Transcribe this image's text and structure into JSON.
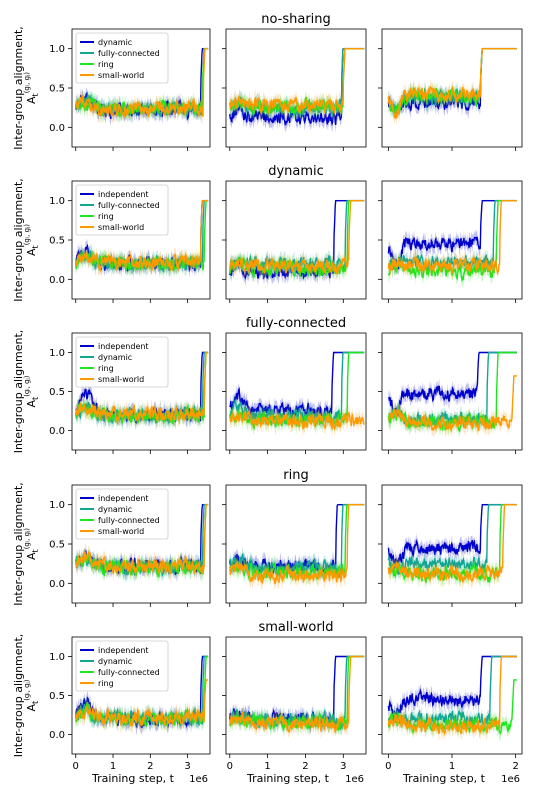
{
  "figure": {
    "ylabel_main": "Inter-group alignment,",
    "ylabel_symbol": "A",
    "ylabel_sub": "t",
    "ylabel_sup": "(gᵢ, gⱼ)",
    "xlabel": "Training step, t",
    "x_multiplier": "1e6"
  },
  "colors": {
    "dynamic": "#0000cc",
    "independent": "#0000cc",
    "fully-connected": "#12a596",
    "ring": "#1ee61e",
    "small-world": "#ff9900"
  },
  "chart_data": [
    {
      "type": "line",
      "title": "no-sharing",
      "legend": [
        "dynamic",
        "fully-connected",
        "ring",
        "small-world"
      ],
      "legend_colors": [
        "#0000cc",
        "#12a596",
        "#1ee61e",
        "#ff9900"
      ],
      "ylim": [
        -0.25,
        1.25
      ],
      "yticks": [
        "0.0",
        "0.5",
        "1.0"
      ],
      "panels": [
        {
          "xlim": [
            -0.1,
            3.6
          ],
          "xticks": [
            0,
            1,
            2,
            3
          ],
          "series": [
            {
              "color": "#0000cc",
              "switch": 3.35,
              "base": 0.22,
              "early": 0.4,
              "end": 1.0
            },
            {
              "color": "#12a596",
              "switch": 3.4,
              "base": 0.22,
              "early": 0.35,
              "end": 1.0
            },
            {
              "color": "#1ee61e",
              "switch": 3.4,
              "base": 0.24,
              "early": 0.3,
              "end": 1.0
            },
            {
              "color": "#ff9900",
              "switch": 3.42,
              "base": 0.23,
              "early": 0.32,
              "end": 1.0
            }
          ]
        },
        {
          "xlim": [
            -0.1,
            3.6
          ],
          "xticks": [
            0,
            1,
            2,
            3
          ],
          "series": [
            {
              "color": "#0000cc",
              "switch": 2.95,
              "base": 0.12,
              "early": 0.2,
              "end": 1.0
            },
            {
              "color": "#12a596",
              "switch": 2.95,
              "base": 0.25,
              "early": 0.3,
              "end": 1.0
            },
            {
              "color": "#1ee61e",
              "switch": 3.0,
              "base": 0.27,
              "early": 0.3,
              "end": 1.0
            },
            {
              "color": "#ff9900",
              "switch": 3.0,
              "base": 0.28,
              "early": 0.3,
              "end": 1.0
            }
          ]
        },
        {
          "xlim": [
            -0.1,
            2.1
          ],
          "xticks": [
            0,
            1,
            2
          ],
          "series": [
            {
              "color": "#0000cc",
              "switch": 1.45,
              "base": 0.32,
              "early": 0.2,
              "end": 1.0
            },
            {
              "color": "#12a596",
              "switch": 1.45,
              "base": 0.38,
              "early": 0.2,
              "end": 1.0
            },
            {
              "color": "#1ee61e",
              "switch": 1.45,
              "base": 0.4,
              "early": 0.2,
              "end": 1.0
            },
            {
              "color": "#ff9900",
              "switch": 1.45,
              "base": 0.42,
              "early": 0.2,
              "end": 1.0
            }
          ]
        }
      ]
    },
    {
      "type": "line",
      "title": "dynamic",
      "legend": [
        "independent",
        "fully-connected",
        "ring",
        "small-world"
      ],
      "legend_colors": [
        "#0000cc",
        "#12a596",
        "#1ee61e",
        "#ff9900"
      ],
      "ylim": [
        -0.25,
        1.25
      ],
      "yticks": [
        "0.0",
        "0.5",
        "1.0"
      ],
      "panels": [
        {
          "xlim": [
            -0.1,
            3.6
          ],
          "xticks": [
            0,
            1,
            2,
            3
          ],
          "series": [
            {
              "color": "#0000cc",
              "switch": 3.35,
              "base": 0.2,
              "early": 0.35,
              "end": 1.0
            },
            {
              "color": "#12a596",
              "switch": 3.4,
              "base": 0.21,
              "early": 0.3,
              "end": 1.0
            },
            {
              "color": "#1ee61e",
              "switch": 3.45,
              "base": 0.2,
              "early": 0.3,
              "end": 1.0
            },
            {
              "color": "#ff9900",
              "switch": 3.35,
              "base": 0.22,
              "early": 0.3,
              "end": 1.0
            }
          ]
        },
        {
          "xlim": [
            -0.1,
            3.6
          ],
          "xticks": [
            0,
            1,
            2,
            3
          ],
          "series": [
            {
              "color": "#0000cc",
              "switch": 2.75,
              "base": 0.1,
              "early": 0.15,
              "end": 1.0
            },
            {
              "color": "#12a596",
              "switch": 3.05,
              "base": 0.2,
              "early": 0.2,
              "end": 1.0
            },
            {
              "color": "#1ee61e",
              "switch": 3.1,
              "base": 0.14,
              "early": 0.2,
              "end": 1.0
            },
            {
              "color": "#ff9900",
              "switch": 3.15,
              "base": 0.17,
              "early": 0.2,
              "end": 1.0
            }
          ]
        },
        {
          "xlim": [
            -0.1,
            2.1
          ],
          "xticks": [
            0,
            1,
            2
          ],
          "series": [
            {
              "color": "#0000cc",
              "switch": 1.45,
              "base": 0.45,
              "early": 0.2,
              "end": 1.0
            },
            {
              "color": "#12a596",
              "switch": 1.65,
              "base": 0.22,
              "early": 0.2,
              "end": 1.0
            },
            {
              "color": "#1ee61e",
              "switch": 1.7,
              "base": 0.1,
              "early": 0.2,
              "end": 1.0
            },
            {
              "color": "#ff9900",
              "switch": 1.75,
              "base": 0.18,
              "early": 0.2,
              "end": 1.0
            }
          ]
        }
      ]
    },
    {
      "type": "line",
      "title": "fully-connected",
      "legend": [
        "independent",
        "dynamic",
        "ring",
        "small-world"
      ],
      "legend_colors": [
        "#0000cc",
        "#12a596",
        "#1ee61e",
        "#ff9900"
      ],
      "ylim": [
        -0.25,
        1.25
      ],
      "yticks": [
        "0.0",
        "0.5",
        "1.0"
      ],
      "panels": [
        {
          "xlim": [
            -0.1,
            3.6
          ],
          "xticks": [
            0,
            1,
            2,
            3
          ],
          "series": [
            {
              "color": "#0000cc",
              "switch": 3.35,
              "base": 0.2,
              "early": 0.45,
              "end": 1.0
            },
            {
              "color": "#12a596",
              "switch": 3.4,
              "base": 0.2,
              "early": 0.3,
              "end": 1.0
            },
            {
              "color": "#1ee61e",
              "switch": 3.45,
              "base": 0.19,
              "early": 0.3,
              "end": 1.0
            },
            {
              "color": "#ff9900",
              "switch": 3.45,
              "base": 0.21,
              "early": 0.3,
              "end": 1.0
            }
          ]
        },
        {
          "xlim": [
            -0.1,
            3.6
          ],
          "xticks": [
            0,
            1,
            2,
            3
          ],
          "series": [
            {
              "color": "#0000cc",
              "switch": 2.7,
              "base": 0.25,
              "early": 0.45,
              "end": 1.0
            },
            {
              "color": "#12a596",
              "switch": 2.95,
              "base": 0.18,
              "early": 0.3,
              "end": 1.0
            },
            {
              "color": "#1ee61e",
              "switch": 3.1,
              "base": 0.14,
              "early": 0.2,
              "end": 1.0
            },
            {
              "color": "#ff9900",
              "switch": 3.6,
              "base": 0.12,
              "early": 0.2,
              "end": 0.12
            }
          ]
        },
        {
          "xlim": [
            -0.1,
            2.1
          ],
          "xticks": [
            0,
            1,
            2
          ],
          "series": [
            {
              "color": "#0000cc",
              "switch": 1.4,
              "base": 0.48,
              "early": 0.25,
              "end": 1.0
            },
            {
              "color": "#12a596",
              "switch": 1.55,
              "base": 0.15,
              "early": 0.25,
              "end": 1.0
            },
            {
              "color": "#1ee61e",
              "switch": 1.7,
              "base": 0.1,
              "early": 0.2,
              "end": 1.0
            },
            {
              "color": "#ff9900",
              "switch": 1.95,
              "base": 0.1,
              "early": 0.2,
              "end": 0.7
            }
          ]
        }
      ]
    },
    {
      "type": "line",
      "title": "ring",
      "legend": [
        "independent",
        "dynamic",
        "fully-connected",
        "small-world"
      ],
      "legend_colors": [
        "#0000cc",
        "#12a596",
        "#1ee61e",
        "#ff9900"
      ],
      "ylim": [
        -0.25,
        1.25
      ],
      "yticks": [
        "0.0",
        "0.5",
        "1.0"
      ],
      "panels": [
        {
          "xlim": [
            -0.1,
            3.6
          ],
          "xticks": [
            0,
            1,
            2,
            3
          ],
          "series": [
            {
              "color": "#0000cc",
              "switch": 3.35,
              "base": 0.22,
              "early": 0.35,
              "end": 1.0
            },
            {
              "color": "#12a596",
              "switch": 3.4,
              "base": 0.21,
              "early": 0.3,
              "end": 1.0
            },
            {
              "color": "#1ee61e",
              "switch": 3.45,
              "base": 0.2,
              "early": 0.3,
              "end": 1.0
            },
            {
              "color": "#ff9900",
              "switch": 3.45,
              "base": 0.22,
              "early": 0.3,
              "end": 1.0
            }
          ]
        },
        {
          "xlim": [
            -0.1,
            3.6
          ],
          "xticks": [
            0,
            1,
            2,
            3
          ],
          "series": [
            {
              "color": "#0000cc",
              "switch": 2.8,
              "base": 0.22,
              "early": 0.3,
              "end": 1.0
            },
            {
              "color": "#12a596",
              "switch": 2.95,
              "base": 0.2,
              "early": 0.3,
              "end": 1.0
            },
            {
              "color": "#1ee61e",
              "switch": 3.05,
              "base": 0.15,
              "early": 0.2,
              "end": 1.0
            },
            {
              "color": "#ff9900",
              "switch": 3.1,
              "base": 0.1,
              "early": 0.2,
              "end": 1.0
            }
          ]
        },
        {
          "xlim": [
            -0.1,
            2.1
          ],
          "xticks": [
            0,
            1,
            2
          ],
          "series": [
            {
              "color": "#0000cc",
              "switch": 1.45,
              "base": 0.45,
              "early": 0.25,
              "end": 1.0
            },
            {
              "color": "#12a596",
              "switch": 1.55,
              "base": 0.25,
              "early": 0.2,
              "end": 1.0
            },
            {
              "color": "#1ee61e",
              "switch": 1.75,
              "base": 0.12,
              "early": 0.2,
              "end": 1.0
            },
            {
              "color": "#ff9900",
              "switch": 1.8,
              "base": 0.12,
              "early": 0.2,
              "end": 1.0
            }
          ]
        }
      ]
    },
    {
      "type": "line",
      "title": "small-world",
      "legend": [
        "independent",
        "dynamic",
        "fully-connected",
        "ring"
      ],
      "legend_colors": [
        "#0000cc",
        "#12a596",
        "#1ee61e",
        "#ff9900"
      ],
      "ylim": [
        -0.25,
        1.25
      ],
      "yticks": [
        "0.0",
        "0.5",
        "1.0"
      ],
      "panels": [
        {
          "xlim": [
            -0.1,
            3.6
          ],
          "xticks": [
            0,
            1,
            2,
            3
          ],
          "series": [
            {
              "color": "#0000cc",
              "switch": 3.35,
              "base": 0.2,
              "early": 0.4,
              "end": 1.0
            },
            {
              "color": "#12a596",
              "switch": 3.4,
              "base": 0.21,
              "early": 0.3,
              "end": 1.0
            },
            {
              "color": "#1ee61e",
              "switch": 3.45,
              "base": 0.2,
              "early": 0.3,
              "end": 1.0
            },
            {
              "color": "#ff9900",
              "switch": 3.45,
              "base": 0.22,
              "early": 0.3,
              "end": 0.7
            }
          ]
        },
        {
          "xlim": [
            -0.1,
            3.6
          ],
          "xticks": [
            0,
            1,
            2,
            3
          ],
          "series": [
            {
              "color": "#0000cc",
              "switch": 2.75,
              "base": 0.2,
              "early": 0.3,
              "end": 1.0
            },
            {
              "color": "#12a596",
              "switch": 3.05,
              "base": 0.18,
              "early": 0.25,
              "end": 1.0
            },
            {
              "color": "#1ee61e",
              "switch": 3.1,
              "base": 0.15,
              "early": 0.2,
              "end": 1.0
            },
            {
              "color": "#ff9900",
              "switch": 3.15,
              "base": 0.14,
              "early": 0.2,
              "end": 1.0
            }
          ]
        },
        {
          "xlim": [
            -0.1,
            2.1
          ],
          "xticks": [
            0,
            1,
            2
          ],
          "series": [
            {
              "color": "#0000cc",
              "switch": 1.45,
              "base": 0.45,
              "early": 0.25,
              "end": 1.0
            },
            {
              "color": "#12a596",
              "switch": 1.6,
              "base": 0.2,
              "early": 0.2,
              "end": 1.0
            },
            {
              "color": "#1ee61e",
              "switch": 1.95,
              "base": 0.12,
              "early": 0.2,
              "end": 0.7
            },
            {
              "color": "#ff9900",
              "switch": 1.75,
              "base": 0.12,
              "early": 0.2,
              "end": 1.0
            }
          ]
        }
      ]
    }
  ]
}
